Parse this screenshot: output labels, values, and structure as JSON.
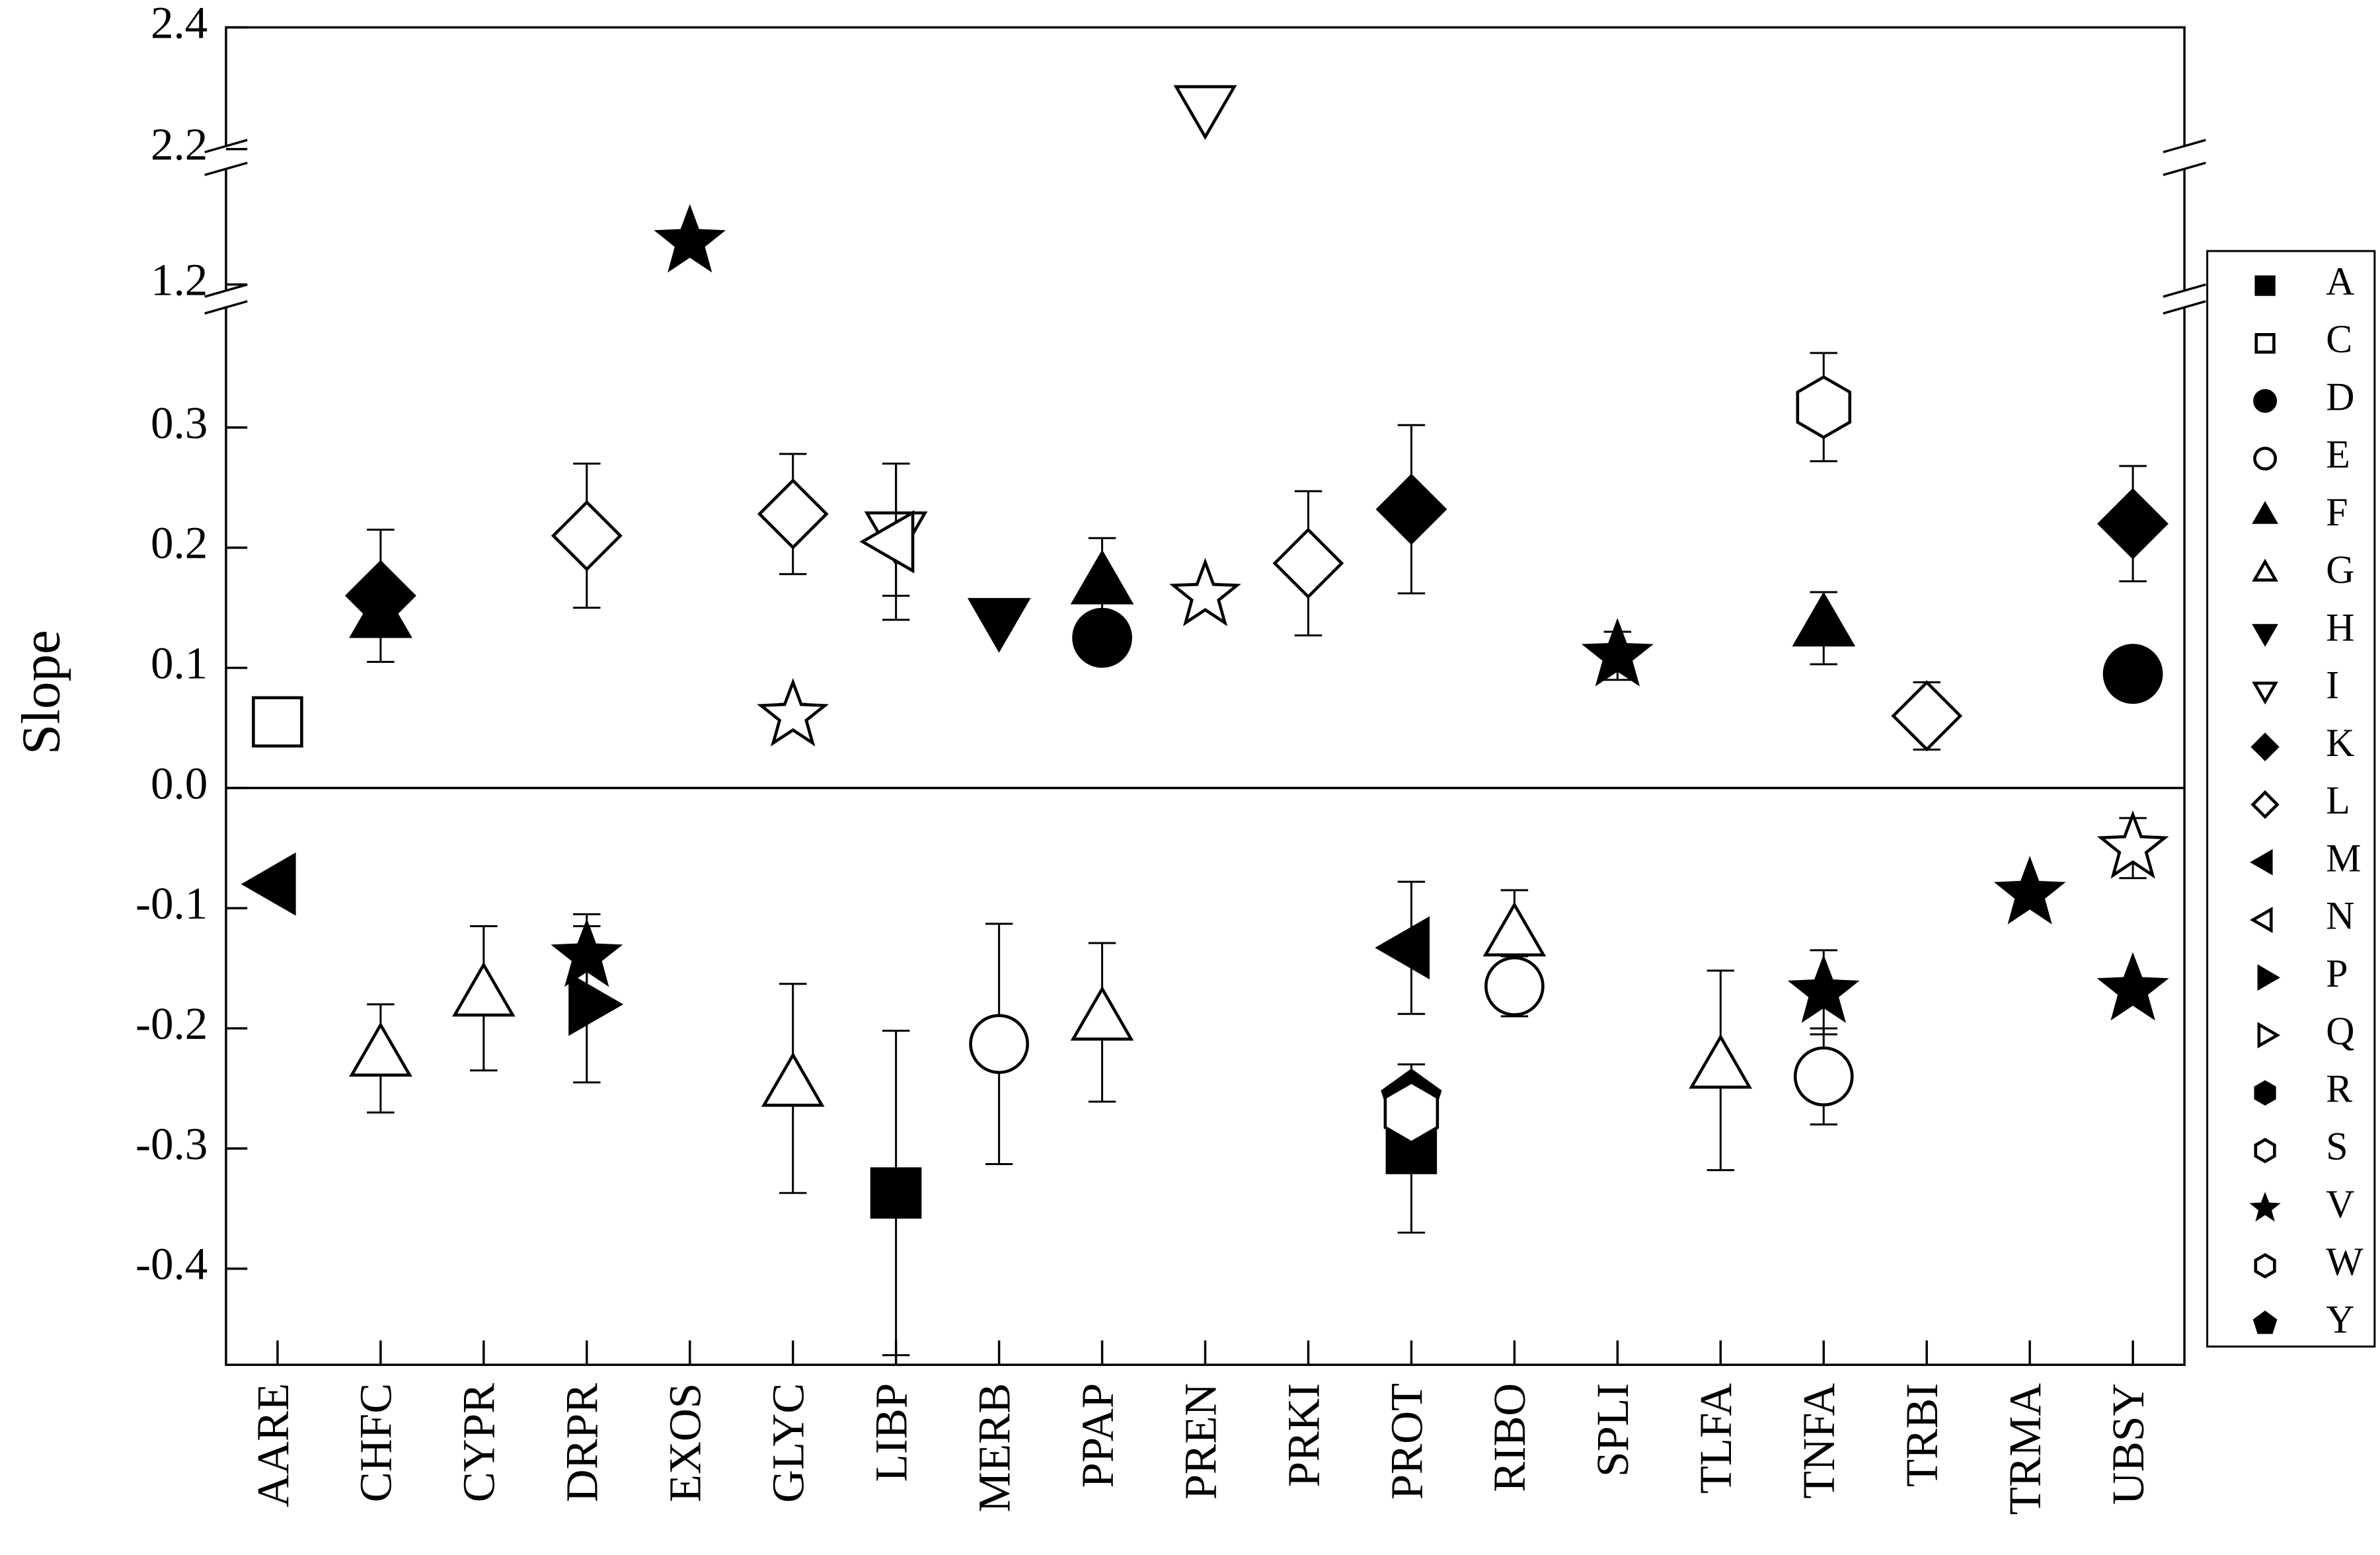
{
  "chart_data": {
    "type": "scatter",
    "y_label": "Slope",
    "categories": [
      "AARE",
      "CHFC",
      "CYPR",
      "DRPR",
      "EXOS",
      "GLYC",
      "LIBP",
      "MERB",
      "PPAP",
      "PREN",
      "PRKI",
      "PROT",
      "RIBO",
      "SPLI",
      "TLFA",
      "TNFA",
      "TRBI",
      "TRMA",
      "UBSY"
    ],
    "segments": [
      {
        "ylim": [
          -0.48,
          0.4
        ],
        "yticks": [
          -0.4,
          -0.3,
          -0.2,
          -0.1,
          {
            "value": 0,
            "label": "0.0"
          },
          0.1,
          0.2,
          0.3
        ]
      },
      {
        "ylim": [
          1.19,
          1.39
        ],
        "yticks": [
          1.2
        ]
      },
      {
        "ylim": [
          2.205,
          2.4
        ],
        "yticks": [
          2.2,
          2.4
        ]
      }
    ],
    "legend": [
      {
        "name": "A",
        "marker": "square",
        "filled": true
      },
      {
        "name": "C",
        "marker": "square",
        "filled": false
      },
      {
        "name": "D",
        "marker": "circle",
        "filled": true
      },
      {
        "name": "E",
        "marker": "circle",
        "filled": false
      },
      {
        "name": "F",
        "marker": "triangle-up",
        "filled": true
      },
      {
        "name": "G",
        "marker": "triangle-up",
        "filled": false
      },
      {
        "name": "H",
        "marker": "triangle-down",
        "filled": true
      },
      {
        "name": "I",
        "marker": "triangle-down",
        "filled": false
      },
      {
        "name": "K",
        "marker": "diamond",
        "filled": true
      },
      {
        "name": "L",
        "marker": "diamond",
        "filled": false
      },
      {
        "name": "M",
        "marker": "triangle-left",
        "filled": true
      },
      {
        "name": "N",
        "marker": "triangle-left",
        "filled": false
      },
      {
        "name": "P",
        "marker": "triangle-right",
        "filled": true
      },
      {
        "name": "Q",
        "marker": "triangle-right",
        "filled": false
      },
      {
        "name": "R",
        "marker": "hexagon",
        "filled": true
      },
      {
        "name": "S",
        "marker": "hexagon",
        "filled": false
      },
      {
        "name": "V",
        "marker": "star",
        "filled": true
      },
      {
        "name": "W",
        "marker": "hexagon",
        "filled": false
      },
      {
        "name": "Y",
        "marker": "pentagon",
        "filled": true
      }
    ],
    "points": [
      {
        "category": 0,
        "marker": "square",
        "filled": false,
        "value": 0.055,
        "error": 0.015
      },
      {
        "category": 0,
        "marker": "triangle-left",
        "filled": true,
        "value": -0.08
      },
      {
        "category": 1,
        "marker": "triangle-up",
        "filled": true,
        "value": 0.14
      },
      {
        "category": 1,
        "marker": "diamond",
        "filled": true,
        "value": 0.16,
        "error": 0.055
      },
      {
        "category": 1,
        "marker": "triangle-up",
        "filled": false,
        "value": -0.225,
        "error": 0.045
      },
      {
        "category": 2,
        "marker": "triangle-up",
        "filled": false,
        "value": -0.175,
        "error": 0.06
      },
      {
        "category": 3,
        "marker": "diamond",
        "filled": false,
        "value": 0.21,
        "error": 0.06
      },
      {
        "category": 3,
        "marker": "triangle-right",
        "filled": true,
        "value": -0.18,
        "error": 0.065
      },
      {
        "category": 3,
        "marker": "star",
        "filled": true,
        "value": -0.14,
        "error": 0.035
      },
      {
        "category": 4,
        "marker": "star",
        "filled": true,
        "value": 1.27
      },
      {
        "category": 5,
        "marker": "diamond",
        "filled": false,
        "value": 0.228,
        "error": 0.05
      },
      {
        "category": 5,
        "marker": "star",
        "filled": false,
        "value": 0.06,
        "error": 0.01
      },
      {
        "category": 5,
        "marker": "triangle-up",
        "filled": false,
        "value": -0.25,
        "error": 0.087
      },
      {
        "category": 6,
        "marker": "triangle-down",
        "filled": false,
        "value": 0.215,
        "error": 0.055
      },
      {
        "category": 6,
        "marker": "triangle-left",
        "filled": false,
        "value": 0.205,
        "error": 0.065
      },
      {
        "category": 6,
        "marker": "square",
        "filled": true,
        "value": -0.337,
        "error": 0.135
      },
      {
        "category": 7,
        "marker": "triangle-down",
        "filled": true,
        "value": 0.143
      },
      {
        "category": 7,
        "marker": "circle",
        "filled": false,
        "value": -0.213,
        "error": 0.1
      },
      {
        "category": 8,
        "marker": "triangle-up",
        "filled": true,
        "value": 0.168,
        "error": 0.04
      },
      {
        "category": 8,
        "marker": "circle",
        "filled": true,
        "value": 0.125
      },
      {
        "category": 8,
        "marker": "triangle-up",
        "filled": false,
        "value": -0.195,
        "error": 0.066
      },
      {
        "category": 9,
        "marker": "triangle-down",
        "filled": false,
        "value": 2.275
      },
      {
        "category": 9,
        "marker": "star",
        "filled": false,
        "value": 0.16
      },
      {
        "category": 10,
        "marker": "diamond",
        "filled": false,
        "value": 0.187,
        "error": 0.06
      },
      {
        "category": 11,
        "marker": "diamond",
        "filled": true,
        "value": 0.232,
        "error": 0.07
      },
      {
        "category": 11,
        "marker": "triangle-left",
        "filled": true,
        "value": -0.133,
        "error": 0.055
      },
      {
        "category": 11,
        "marker": "square",
        "filled": true,
        "value": -0.3,
        "error": 0.07
      },
      {
        "category": 11,
        "marker": "pentagon",
        "filled": true,
        "value": -0.26
      },
      {
        "category": 11,
        "marker": "hexagon",
        "filled": false,
        "value": -0.27
      },
      {
        "category": 12,
        "marker": "triangle-up",
        "filled": false,
        "value": -0.125,
        "error": 0.04
      },
      {
        "category": 12,
        "marker": "circle",
        "filled": false,
        "value": -0.165,
        "error": 0.025
      },
      {
        "category": 13,
        "marker": "star",
        "filled": true,
        "value": 0.11,
        "error": 0.02
      },
      {
        "category": 14,
        "marker": "triangle-up",
        "filled": false,
        "value": -0.235,
        "error": 0.083
      },
      {
        "category": 15,
        "marker": "hexagon",
        "filled": false,
        "value": 0.317,
        "error": 0.045
      },
      {
        "category": 15,
        "marker": "triangle-up",
        "filled": true,
        "value": 0.133,
        "error": 0.03
      },
      {
        "category": 15,
        "marker": "star",
        "filled": true,
        "value": -0.17,
        "error": 0.035
      },
      {
        "category": 15,
        "marker": "circle",
        "filled": false,
        "value": -0.24,
        "error": 0.04
      },
      {
        "category": 16,
        "marker": "diamond",
        "filled": false,
        "value": 0.06,
        "error": 0.028
      },
      {
        "category": 17,
        "marker": "star",
        "filled": true,
        "value": -0.088
      },
      {
        "category": 18,
        "marker": "diamond",
        "filled": true,
        "value": 0.22,
        "error": 0.048
      },
      {
        "category": 18,
        "marker": "circle",
        "filled": true,
        "value": 0.095
      },
      {
        "category": 18,
        "marker": "star",
        "filled": false,
        "value": -0.05,
        "error": 0.025
      },
      {
        "category": 18,
        "marker": "star",
        "filled": true,
        "value": -0.168
      }
    ]
  }
}
